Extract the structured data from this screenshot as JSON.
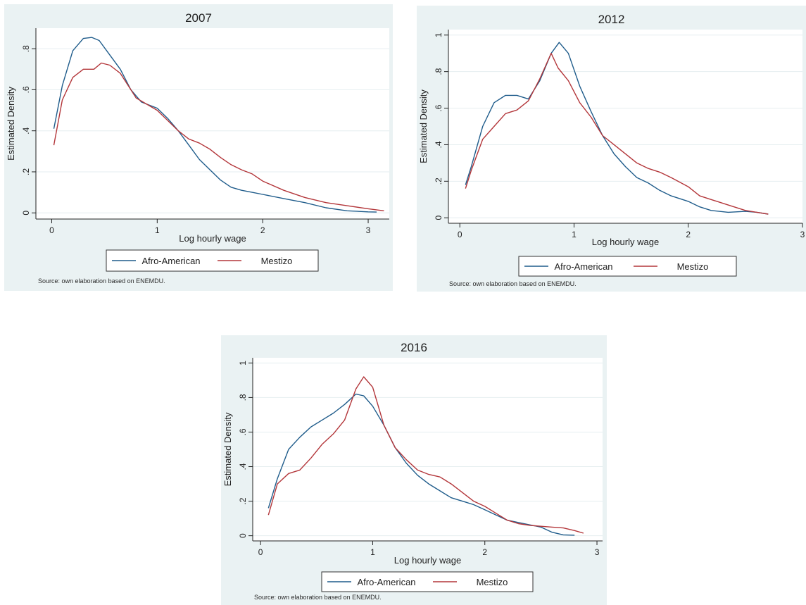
{
  "colors": {
    "afro": "#1f5c8b",
    "mestizo": "#b3363a",
    "panel_bg": "#eaf2f3",
    "plot_bg": "#ffffff",
    "grid": "#e6eef0"
  },
  "chart_data": [
    {
      "type": "line",
      "title": "2007",
      "xlabel": "Log hourly wage",
      "ylabel": "Estimated Density",
      "xlim": [
        -0.15,
        3.2
      ],
      "ylim": [
        -0.03,
        0.9
      ],
      "xticks": [
        {
          "v": 0,
          "label": "0"
        },
        {
          "v": 1,
          "label": "1"
        },
        {
          "v": 2,
          "label": "2"
        },
        {
          "v": 3,
          "label": "3"
        }
      ],
      "yticks": [
        {
          "v": 0,
          "label": "0"
        },
        {
          "v": 0.2,
          "label": ".2"
        },
        {
          "v": 0.4,
          "label": ".4"
        },
        {
          "v": 0.6,
          "label": ".6"
        },
        {
          "v": 0.8,
          "label": ".8"
        }
      ],
      "grid": true,
      "legend_position": "bottom",
      "series": [
        {
          "name": "Afro-American",
          "key": "afro",
          "points": [
            [
              0.02,
              0.41
            ],
            [
              0.1,
              0.62
            ],
            [
              0.2,
              0.79
            ],
            [
              0.3,
              0.85
            ],
            [
              0.38,
              0.855
            ],
            [
              0.45,
              0.84
            ],
            [
              0.55,
              0.77
            ],
            [
              0.65,
              0.7
            ],
            [
              0.75,
              0.6
            ],
            [
              0.85,
              0.54
            ],
            [
              1.0,
              0.51
            ],
            [
              1.1,
              0.46
            ],
            [
              1.2,
              0.4
            ],
            [
              1.3,
              0.33
            ],
            [
              1.4,
              0.26
            ],
            [
              1.5,
              0.21
            ],
            [
              1.6,
              0.16
            ],
            [
              1.7,
              0.125
            ],
            [
              1.8,
              0.11
            ],
            [
              1.9,
              0.1
            ],
            [
              2.0,
              0.09
            ],
            [
              2.2,
              0.07
            ],
            [
              2.4,
              0.05
            ],
            [
              2.6,
              0.025
            ],
            [
              2.8,
              0.01
            ],
            [
              3.0,
              0.005
            ],
            [
              3.08,
              0.004
            ]
          ]
        },
        {
          "name": "Mestizo",
          "key": "mestizo",
          "points": [
            [
              0.02,
              0.33
            ],
            [
              0.1,
              0.55
            ],
            [
              0.2,
              0.66
            ],
            [
              0.3,
              0.7
            ],
            [
              0.4,
              0.7
            ],
            [
              0.47,
              0.73
            ],
            [
              0.55,
              0.72
            ],
            [
              0.65,
              0.68
            ],
            [
              0.75,
              0.6
            ],
            [
              0.8,
              0.56
            ],
            [
              1.0,
              0.5
            ],
            [
              1.1,
              0.45
            ],
            [
              1.2,
              0.4
            ],
            [
              1.3,
              0.36
            ],
            [
              1.4,
              0.34
            ],
            [
              1.5,
              0.31
            ],
            [
              1.6,
              0.27
            ],
            [
              1.7,
              0.235
            ],
            [
              1.8,
              0.21
            ],
            [
              1.9,
              0.19
            ],
            [
              2.0,
              0.155
            ],
            [
              2.2,
              0.11
            ],
            [
              2.4,
              0.075
            ],
            [
              2.6,
              0.05
            ],
            [
              2.8,
              0.035
            ],
            [
              3.0,
              0.02
            ],
            [
              3.15,
              0.01
            ]
          ]
        }
      ],
      "legend": [
        "Afro-American",
        "Mestizo"
      ],
      "note": "Source: own elaboration based on ENEMDU."
    },
    {
      "type": "line",
      "title": "2012",
      "xlabel": "Log hourly wage",
      "ylabel": "Estimated Density",
      "xlim": [
        -0.1,
        3.0
      ],
      "ylim": [
        -0.03,
        1.03
      ],
      "xticks": [
        {
          "v": 0,
          "label": "0"
        },
        {
          "v": 1,
          "label": "1"
        },
        {
          "v": 2,
          "label": "2"
        },
        {
          "v": 3,
          "label": "3"
        }
      ],
      "yticks": [
        {
          "v": 0,
          "label": "0"
        },
        {
          "v": 0.2,
          "label": ".2"
        },
        {
          "v": 0.4,
          "label": ".4"
        },
        {
          "v": 0.6,
          "label": ".6"
        },
        {
          "v": 0.8,
          "label": ".8"
        },
        {
          "v": 1,
          "label": "1"
        }
      ],
      "grid": true,
      "legend_position": "bottom",
      "series": [
        {
          "name": "Afro-American",
          "key": "afro",
          "points": [
            [
              0.05,
              0.18
            ],
            [
              0.1,
              0.28
            ],
            [
              0.2,
              0.5
            ],
            [
              0.3,
              0.63
            ],
            [
              0.4,
              0.67
            ],
            [
              0.5,
              0.67
            ],
            [
              0.6,
              0.65
            ],
            [
              0.7,
              0.75
            ],
            [
              0.8,
              0.9
            ],
            [
              0.87,
              0.96
            ],
            [
              0.95,
              0.9
            ],
            [
              1.05,
              0.72
            ],
            [
              1.15,
              0.58
            ],
            [
              1.25,
              0.45
            ],
            [
              1.35,
              0.35
            ],
            [
              1.45,
              0.28
            ],
            [
              1.55,
              0.22
            ],
            [
              1.65,
              0.19
            ],
            [
              1.75,
              0.15
            ],
            [
              1.85,
              0.12
            ],
            [
              2.0,
              0.09
            ],
            [
              2.1,
              0.06
            ],
            [
              2.2,
              0.04
            ],
            [
              2.35,
              0.03
            ],
            [
              2.5,
              0.035
            ],
            [
              2.6,
              0.03
            ],
            [
              2.7,
              0.02
            ]
          ]
        },
        {
          "name": "Mestizo",
          "key": "mestizo",
          "points": [
            [
              0.05,
              0.16
            ],
            [
              0.1,
              0.26
            ],
            [
              0.2,
              0.43
            ],
            [
              0.3,
              0.5
            ],
            [
              0.4,
              0.57
            ],
            [
              0.5,
              0.59
            ],
            [
              0.6,
              0.64
            ],
            [
              0.7,
              0.76
            ],
            [
              0.8,
              0.9
            ],
            [
              0.86,
              0.82
            ],
            [
              0.95,
              0.75
            ],
            [
              1.05,
              0.63
            ],
            [
              1.15,
              0.55
            ],
            [
              1.25,
              0.45
            ],
            [
              1.35,
              0.4
            ],
            [
              1.45,
              0.35
            ],
            [
              1.55,
              0.3
            ],
            [
              1.65,
              0.27
            ],
            [
              1.75,
              0.25
            ],
            [
              1.85,
              0.22
            ],
            [
              2.0,
              0.17
            ],
            [
              2.1,
              0.12
            ],
            [
              2.2,
              0.1
            ],
            [
              2.35,
              0.07
            ],
            [
              2.5,
              0.04
            ],
            [
              2.6,
              0.03
            ],
            [
              2.7,
              0.02
            ]
          ]
        }
      ],
      "legend": [
        "Afro-American",
        "Mestizo"
      ],
      "note": "Source: own elaboration based on ENEMDU."
    },
    {
      "type": "line",
      "title": "2016",
      "xlabel": "Log hourly wage",
      "ylabel": "Estimated Density",
      "xlim": [
        -0.07,
        3.05
      ],
      "ylim": [
        -0.03,
        1.03
      ],
      "xticks": [
        {
          "v": 0,
          "label": "0"
        },
        {
          "v": 1,
          "label": "1"
        },
        {
          "v": 2,
          "label": "2"
        },
        {
          "v": 3,
          "label": "3"
        }
      ],
      "yticks": [
        {
          "v": 0,
          "label": "0"
        },
        {
          "v": 0.2,
          "label": ".2"
        },
        {
          "v": 0.4,
          "label": ".4"
        },
        {
          "v": 0.6,
          "label": ".6"
        },
        {
          "v": 0.8,
          "label": ".8"
        },
        {
          "v": 1,
          "label": "1"
        }
      ],
      "grid": true,
      "legend_position": "bottom",
      "series": [
        {
          "name": "Afro-American",
          "key": "afro",
          "points": [
            [
              0.07,
              0.16
            ],
            [
              0.15,
              0.33
            ],
            [
              0.25,
              0.5
            ],
            [
              0.35,
              0.57
            ],
            [
              0.45,
              0.63
            ],
            [
              0.55,
              0.67
            ],
            [
              0.65,
              0.71
            ],
            [
              0.75,
              0.76
            ],
            [
              0.85,
              0.82
            ],
            [
              0.92,
              0.81
            ],
            [
              1.0,
              0.75
            ],
            [
              1.1,
              0.64
            ],
            [
              1.2,
              0.51
            ],
            [
              1.3,
              0.42
            ],
            [
              1.4,
              0.35
            ],
            [
              1.5,
              0.3
            ],
            [
              1.6,
              0.26
            ],
            [
              1.7,
              0.22
            ],
            [
              1.8,
              0.2
            ],
            [
              1.9,
              0.18
            ],
            [
              2.0,
              0.15
            ],
            [
              2.1,
              0.12
            ],
            [
              2.2,
              0.09
            ],
            [
              2.35,
              0.07
            ],
            [
              2.5,
              0.05
            ],
            [
              2.6,
              0.02
            ],
            [
              2.7,
              0.005
            ],
            [
              2.8,
              0.003
            ]
          ]
        },
        {
          "name": "Mestizo",
          "key": "mestizo",
          "points": [
            [
              0.07,
              0.12
            ],
            [
              0.15,
              0.3
            ],
            [
              0.25,
              0.36
            ],
            [
              0.35,
              0.38
            ],
            [
              0.45,
              0.45
            ],
            [
              0.55,
              0.53
            ],
            [
              0.65,
              0.59
            ],
            [
              0.75,
              0.67
            ],
            [
              0.85,
              0.85
            ],
            [
              0.92,
              0.92
            ],
            [
              1.0,
              0.86
            ],
            [
              1.1,
              0.64
            ],
            [
              1.2,
              0.51
            ],
            [
              1.3,
              0.44
            ],
            [
              1.4,
              0.38
            ],
            [
              1.5,
              0.355
            ],
            [
              1.6,
              0.34
            ],
            [
              1.7,
              0.3
            ],
            [
              1.8,
              0.25
            ],
            [
              1.9,
              0.2
            ],
            [
              2.0,
              0.17
            ],
            [
              2.1,
              0.13
            ],
            [
              2.2,
              0.09
            ],
            [
              2.3,
              0.07
            ],
            [
              2.4,
              0.06
            ],
            [
              2.5,
              0.055
            ],
            [
              2.6,
              0.05
            ],
            [
              2.7,
              0.045
            ],
            [
              2.8,
              0.03
            ],
            [
              2.88,
              0.015
            ]
          ]
        }
      ],
      "legend": [
        "Afro-American",
        "Mestizo"
      ],
      "note": "Source: own elaboration based on ENEMDU."
    }
  ]
}
